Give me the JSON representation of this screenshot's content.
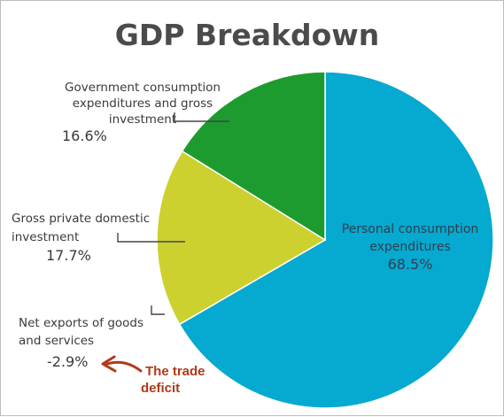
{
  "chart_data": {
    "type": "pie",
    "title": "GDP Breakdown",
    "slices": [
      {
        "label_lines": [
          "Personal consumption",
          "expenditures"
        ],
        "value": 68.5,
        "value_label": "68.5%",
        "color": "#06a9cf"
      },
      {
        "label_lines": [
          "Net exports of goods",
          "and services"
        ],
        "value": -2.9,
        "value_label": "-2.9%",
        "color": "#ffffff"
      },
      {
        "label_lines": [
          "Gross private domestic",
          "investment"
        ],
        "value": 17.7,
        "value_label": "17.7%",
        "color": "#cdd12f"
      },
      {
        "label_lines": [
          "Government consumption",
          "expenditures and gross",
          "investment"
        ],
        "value": 16.6,
        "value_label": "16.6%",
        "color": "#1d9b2e"
      }
    ],
    "annotation": {
      "lines": [
        "The trade",
        "deficit"
      ],
      "color": "#b03a1a"
    }
  }
}
